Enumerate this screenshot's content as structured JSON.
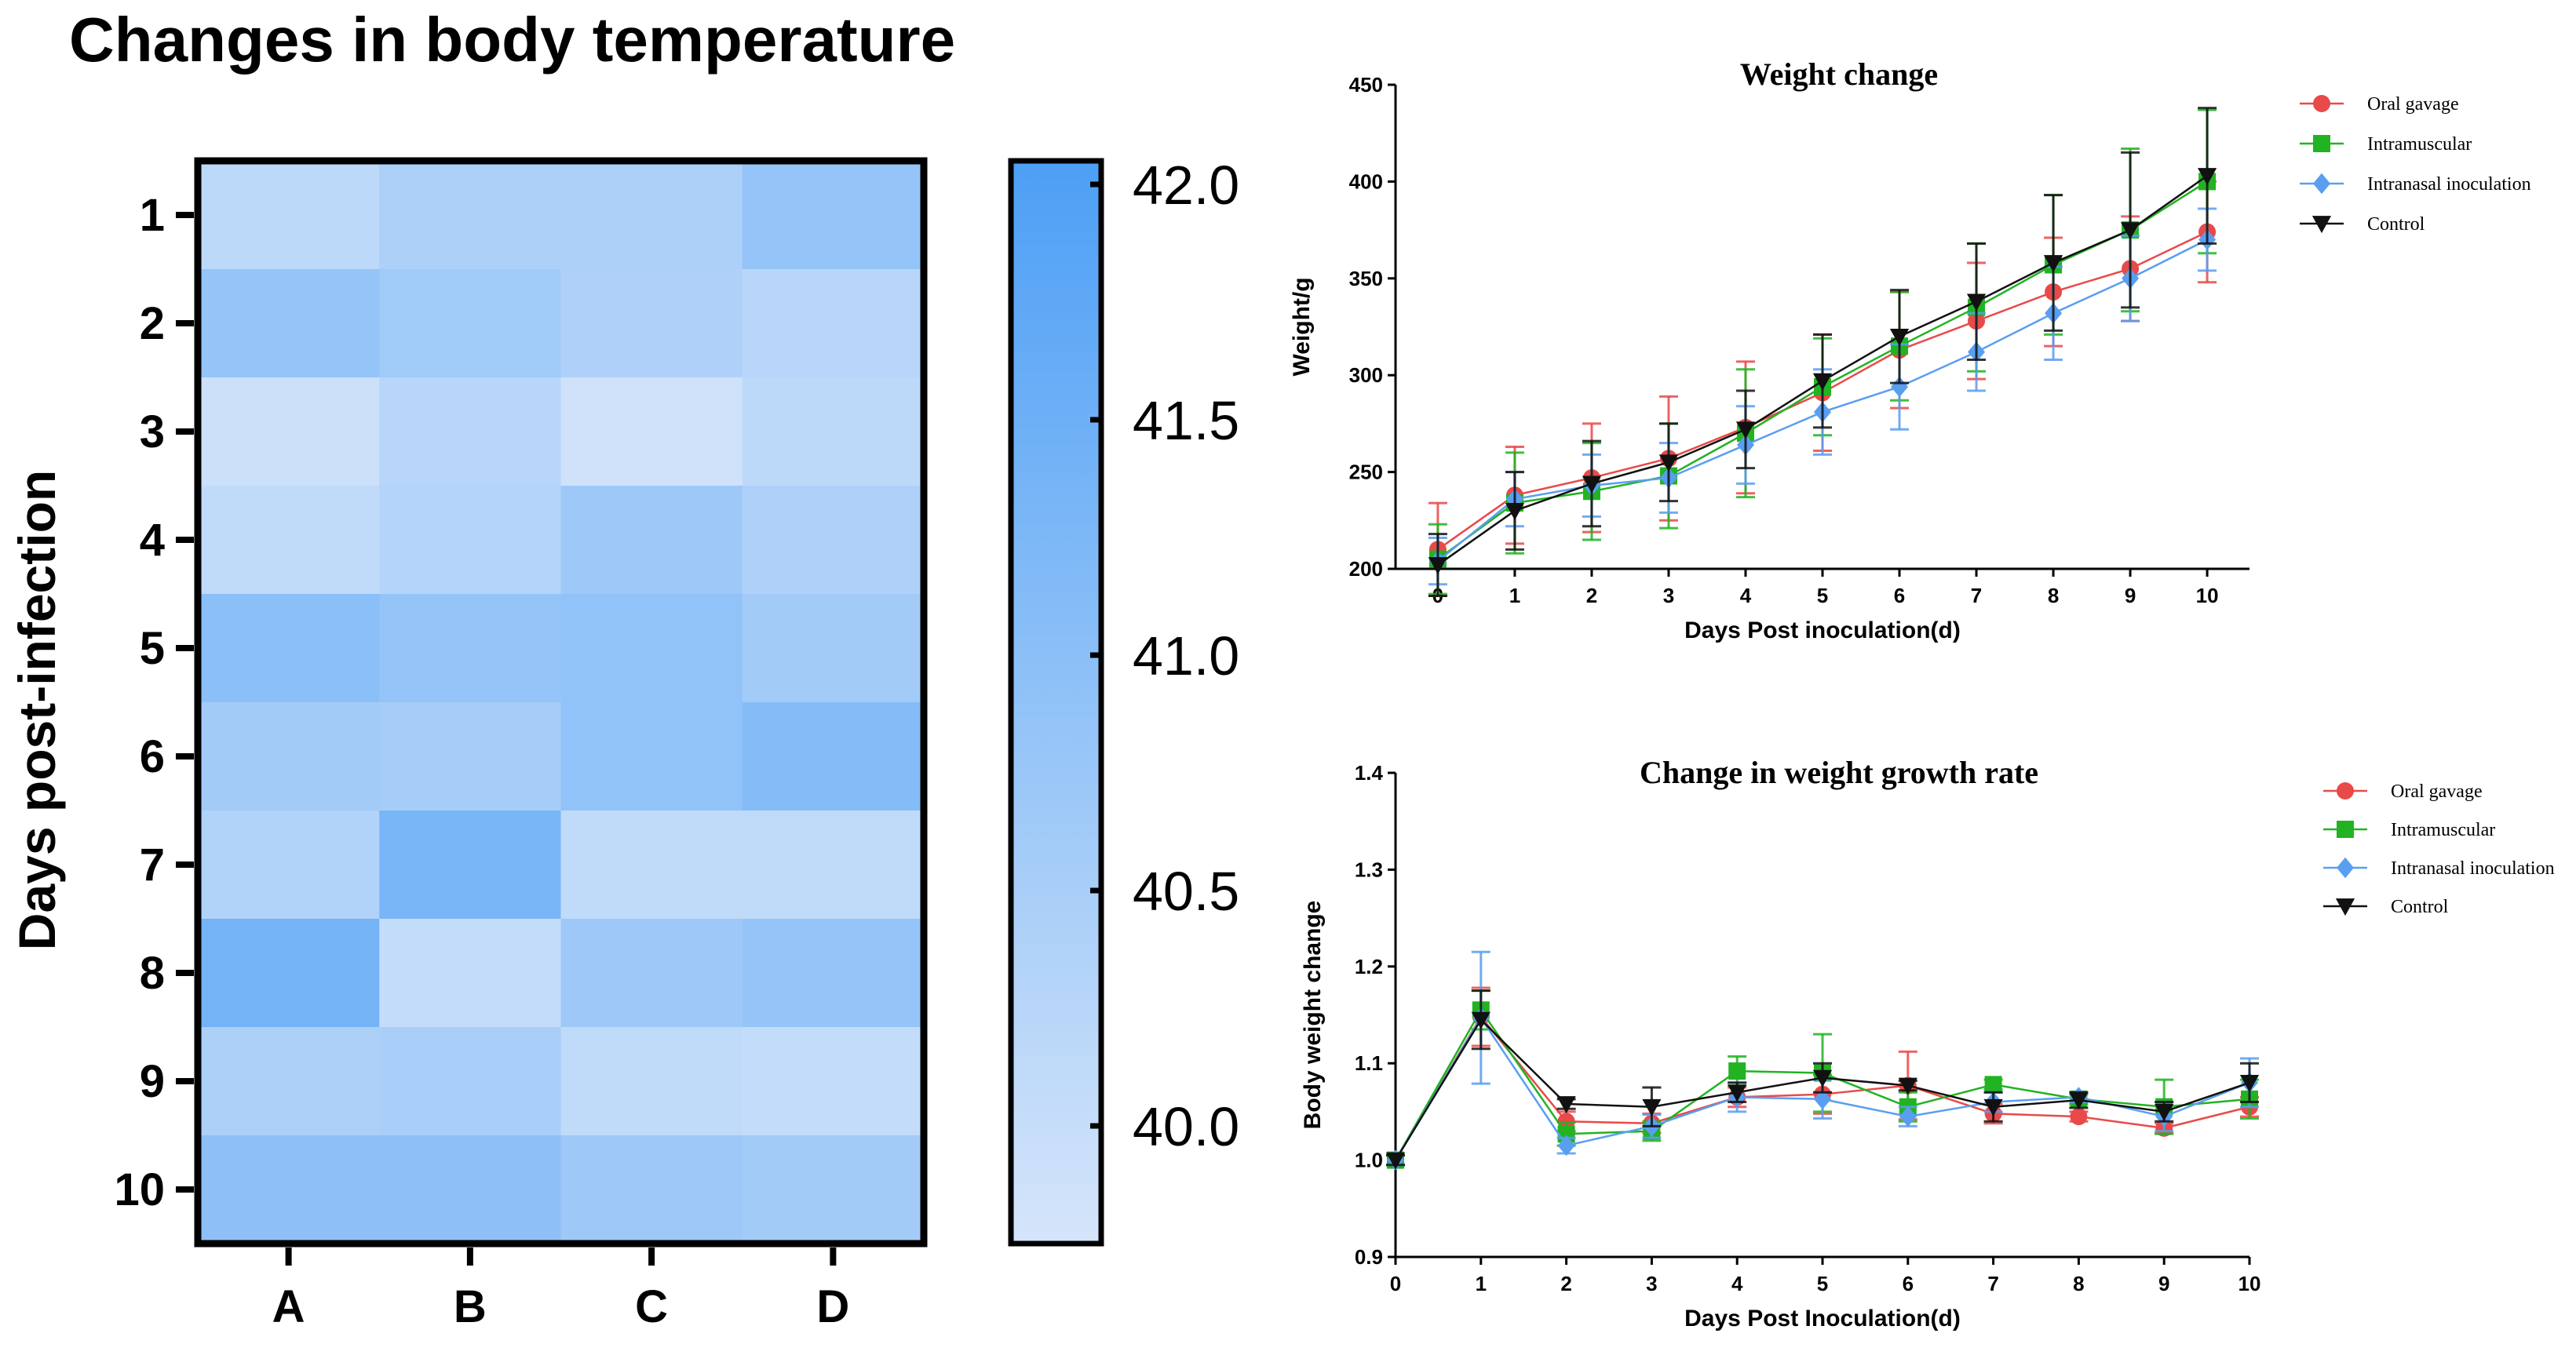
{
  "chart_data": [
    {
      "type": "heatmap",
      "title": "Changes in body temperature",
      "ylabel": "Days post-infection",
      "xlabel": "",
      "categories": [
        "A",
        "B",
        "C",
        "D"
      ],
      "rows": [
        "1",
        "2",
        "3",
        "4",
        "5",
        "6",
        "7",
        "8",
        "9",
        "10"
      ],
      "values": [
        [
          40.15,
          40.45,
          40.45,
          40.85
        ],
        [
          40.85,
          40.65,
          40.4,
          40.25
        ],
        [
          39.9,
          40.25,
          39.85,
          40.15
        ],
        [
          40.1,
          40.3,
          40.7,
          40.4
        ],
        [
          41.0,
          40.85,
          40.9,
          40.6
        ],
        [
          40.6,
          40.55,
          40.9,
          41.1
        ],
        [
          40.35,
          41.3,
          40.1,
          40.1
        ],
        [
          41.4,
          40.05,
          40.7,
          40.85
        ],
        [
          40.45,
          40.5,
          40.1,
          40.05
        ],
        [
          40.95,
          40.95,
          40.7,
          40.6
        ]
      ],
      "colorbar": {
        "min": 39.75,
        "max": 42.05,
        "ticks": [
          "42.0",
          "41.5",
          "41.0",
          "40.5",
          "40.0"
        ],
        "tick_values": [
          42.0,
          41.5,
          41.0,
          40.5,
          40.0
        ]
      },
      "colors": {
        "low": "#d5e5fa",
        "high": "#4d9ff5"
      }
    },
    {
      "type": "line",
      "title": "Weight change",
      "xlabel": "Days Post inoculation(d)",
      "ylabel": "Weight/g",
      "x": [
        0,
        1,
        2,
        3,
        4,
        5,
        6,
        7,
        8,
        9,
        10
      ],
      "x_ticks": [
        "0",
        "1",
        "2",
        "3",
        "4",
        "5",
        "6",
        "7",
        "8",
        "9",
        "10"
      ],
      "ylim": [
        200,
        450
      ],
      "y_ticks": [
        "200",
        "250",
        "300",
        "350",
        "400",
        "450"
      ],
      "y_tick_values": [
        200,
        250,
        300,
        350,
        400,
        450
      ],
      "legend_position": "top-right",
      "series": [
        {
          "name": "Oral gavage",
          "color": "#e84a4a",
          "marker": "circle",
          "values": [
            210,
            238,
            247,
            257,
            273,
            291,
            313,
            328,
            343,
            355,
            374
          ],
          "errors": [
            24,
            25,
            28,
            32,
            34,
            30,
            30,
            30,
            28,
            27,
            26
          ]
        },
        {
          "name": "Intramuscular",
          "color": "#22b322",
          "marker": "square",
          "values": [
            205,
            234,
            240,
            248,
            270,
            294,
            315,
            335,
            357,
            375,
            400
          ],
          "errors": [
            18,
            26,
            25,
            27,
            33,
            25,
            28,
            33,
            36,
            42,
            37
          ]
        },
        {
          "name": "Intranasal inoculation",
          "color": "#5a9ef0",
          "marker": "diamond",
          "values": [
            204,
            236,
            243,
            247,
            264,
            281,
            294,
            312,
            332,
            350,
            370
          ],
          "errors": [
            12,
            14,
            16,
            18,
            20,
            22,
            22,
            20,
            24,
            22,
            16
          ]
        },
        {
          "name": "Control",
          "color": "#111111",
          "marker": "triangle-down",
          "values": [
            202,
            230,
            244,
            255,
            272,
            297,
            320,
            338,
            358,
            375,
            403
          ],
          "errors": [
            16,
            20,
            22,
            20,
            20,
            24,
            24,
            30,
            35,
            40,
            35
          ]
        }
      ]
    },
    {
      "type": "line",
      "title": "Change in weight growth rate",
      "xlabel": "Days Post Inoculation(d)",
      "ylabel": "Body weight change",
      "x": [
        0,
        1,
        2,
        3,
        4,
        5,
        6,
        7,
        8,
        9,
        10
      ],
      "x_ticks": [
        "0",
        "1",
        "2",
        "3",
        "4",
        "5",
        "6",
        "7",
        "8",
        "9",
        "10"
      ],
      "ylim": [
        0.9,
        1.4
      ],
      "y_ticks": [
        "0.9",
        "1.0",
        "1.1",
        "1.2",
        "1.3",
        "1.4"
      ],
      "y_tick_values": [
        0.9,
        1.0,
        1.1,
        1.2,
        1.3,
        1.4
      ],
      "legend_position": "top-right",
      "series": [
        {
          "name": "Oral gavage",
          "color": "#e84a4a",
          "marker": "circle",
          "values": [
            1.0,
            1.148,
            1.04,
            1.038,
            1.065,
            1.068,
            1.077,
            1.048,
            1.045,
            1.033,
            1.055
          ],
          "errors": [
            0.005,
            0.03,
            0.01,
            0.01,
            0.01,
            0.02,
            0.035,
            0.01,
            0.005,
            0.005,
            0.01
          ]
        },
        {
          "name": "Intramuscular",
          "color": "#22b322",
          "marker": "square",
          "values": [
            1.0,
            1.155,
            1.027,
            1.03,
            1.092,
            1.09,
            1.055,
            1.078,
            1.063,
            1.055,
            1.063
          ],
          "errors": [
            0.005,
            0.02,
            0.012,
            0.01,
            0.015,
            0.04,
            0.015,
            0.005,
            0.005,
            0.028,
            0.02
          ]
        },
        {
          "name": "Intranasal inoculation",
          "color": "#5a9ef0",
          "marker": "diamond",
          "values": [
            1.0,
            1.147,
            1.015,
            1.035,
            1.065,
            1.063,
            1.045,
            1.06,
            1.065,
            1.045,
            1.08
          ],
          "errors": [
            0.005,
            0.068,
            0.008,
            0.012,
            0.015,
            0.02,
            0.01,
            0.01,
            0.005,
            0.015,
            0.025
          ]
        },
        {
          "name": "Control",
          "color": "#111111",
          "marker": "triangle-down",
          "values": [
            1.0,
            1.145,
            1.058,
            1.055,
            1.07,
            1.085,
            1.077,
            1.055,
            1.062,
            1.05,
            1.08
          ],
          "errors": [
            0.005,
            0.03,
            0.005,
            0.02,
            0.01,
            0.015,
            0.005,
            0.015,
            0.008,
            0.01,
            0.02
          ]
        }
      ]
    }
  ]
}
